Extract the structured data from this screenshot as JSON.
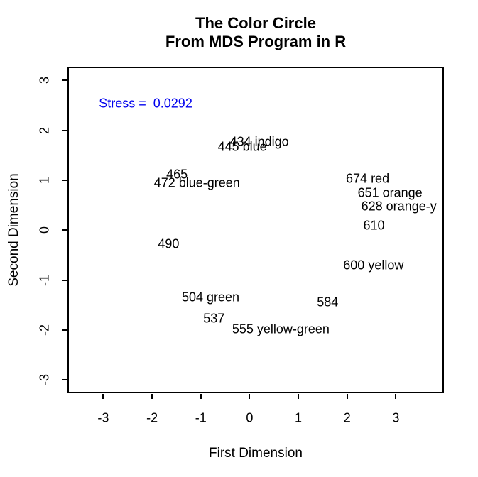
{
  "chart_data": {
    "type": "scatter",
    "title": "The Color Circle",
    "subtitle": "From MDS Program in R",
    "xlabel": "First Dimension",
    "ylabel": "Second Dimension",
    "xlim": [
      -3.72,
      3.97
    ],
    "ylim": [
      -3.25,
      3.26
    ],
    "grid": false,
    "frame": true,
    "x_ticks": [
      -3,
      -2,
      -1,
      0,
      1,
      2,
      3
    ],
    "y_ticks": [
      -3,
      -2,
      -1,
      0,
      1,
      2,
      3
    ],
    "annotation": {
      "text": "Stress =  0.0292",
      "x": -3.09,
      "y": 2.54,
      "halign": "left"
    },
    "points": [
      {
        "label": "434 indigo",
        "x": 0.2,
        "y": 1.77
      },
      {
        "label": "445 blue",
        "x": -0.15,
        "y": 1.67
      },
      {
        "label": "465",
        "x": -1.49,
        "y": 1.11
      },
      {
        "label": "472 blue-green",
        "x": -1.08,
        "y": 0.94
      },
      {
        "label": "490",
        "x": -1.66,
        "y": -0.28
      },
      {
        "label": "504 green",
        "x": -0.8,
        "y": -1.35
      },
      {
        "label": "537",
        "x": -0.73,
        "y": -1.77
      },
      {
        "label": "555 yellow-green",
        "x": 0.64,
        "y": -1.99
      },
      {
        "label": "584",
        "x": 1.6,
        "y": -1.45
      },
      {
        "label": "600 yellow",
        "x": 2.54,
        "y": -0.7
      },
      {
        "label": "610",
        "x": 2.55,
        "y": 0.09
      },
      {
        "label": "628 orange-y",
        "x": 2.29,
        "y": 0.47,
        "halign": "left"
      },
      {
        "label": "651 orange",
        "x": 2.88,
        "y": 0.74
      },
      {
        "label": "674 red",
        "x": 2.42,
        "y": 1.03
      }
    ],
    "colors": {
      "text": "#000000",
      "annotation": "#0000EE",
      "frame": "#000000",
      "background": "#FFFFFF"
    }
  }
}
